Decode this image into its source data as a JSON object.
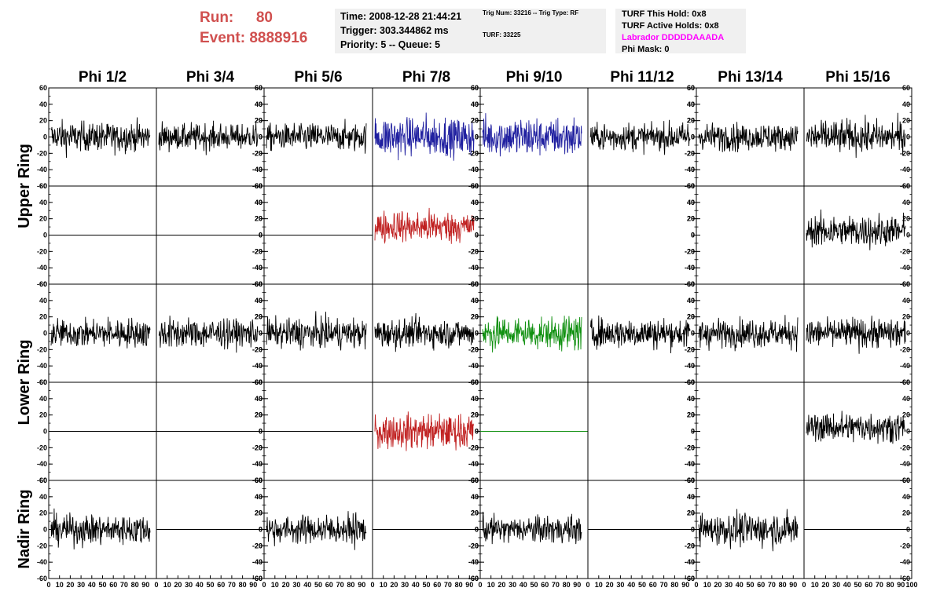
{
  "header": {
    "run_label": "Run:",
    "run_value": "80",
    "event_label": "Event:",
    "event_value": "8888916",
    "time_line": "Time: 2008-12-28 21:44:21",
    "trigger_line": "Trigger: 303.344862 ms",
    "priority_line": "Priority: 5 -- Queue: 5",
    "trig_line": "Trig Num: 33216 -- Trig Type: RF",
    "turf_line": "TURF: 33225",
    "turf_hold_line": "TURF This Hold: 0x8",
    "turf_active_line": "TURF Active Holds: 0x8",
    "labrador_line": "Labrador DDDDDAAADA",
    "phi_mask_line": "Phi Mask: 0",
    "labrador_color": "#ff00ff",
    "run_color": "#d0504f"
  },
  "columns": [
    "Phi 1/2",
    "Phi 3/4",
    "Phi 5/6",
    "Phi 7/8",
    "Phi 9/10",
    "Phi 11/12",
    "Phi 13/14",
    "Phi 15/16"
  ],
  "rings": [
    "Upper Ring",
    "Lower Ring",
    "Nadir Ring"
  ],
  "chart_data": {
    "type": "line",
    "ylim": [
      -60,
      60
    ],
    "xlim": [
      0,
      100
    ],
    "y_ticks": [
      "60",
      "40",
      "20",
      "0",
      "-20",
      "-40",
      "-60"
    ],
    "x_tick_labels": [
      "0",
      "10",
      "20",
      "30",
      "40",
      "50",
      "60",
      "70",
      "80",
      "90",
      "100"
    ],
    "colors": {
      "black": "#000000",
      "blue": "#2020a0",
      "red": "#c02020",
      "green": "#109010"
    },
    "panels": [
      [
        {
          "kind": "noise",
          "color": "black",
          "amp": 22
        },
        {
          "kind": "noise",
          "color": "black",
          "amp": 20
        },
        {
          "kind": "noise",
          "color": "black",
          "amp": 20
        },
        {
          "kind": "noise",
          "color": "blue",
          "amp": 30
        },
        {
          "kind": "noise",
          "color": "blue",
          "amp": 30
        },
        {
          "kind": "noise",
          "color": "black",
          "amp": 20
        },
        {
          "kind": "noise",
          "color": "black",
          "amp": 20
        },
        {
          "kind": "noise",
          "color": "black",
          "amp": 24
        }
      ],
      [
        {
          "kind": "flat",
          "color": "black"
        },
        {
          "kind": "flat",
          "color": "black"
        },
        {
          "kind": "flat",
          "color": "black"
        },
        {
          "kind": "noise",
          "color": "red",
          "amp": 24,
          "offset": 10
        },
        {
          "kind": "none"
        },
        {
          "kind": "none"
        },
        {
          "kind": "none"
        },
        {
          "kind": "noise",
          "color": "black",
          "amp": 24,
          "offset": 5
        }
      ],
      [
        {
          "kind": "noise",
          "color": "black",
          "amp": 22
        },
        {
          "kind": "noise",
          "color": "black",
          "amp": 22
        },
        {
          "kind": "noise",
          "color": "black",
          "amp": 22
        },
        {
          "kind": "noise",
          "color": "black",
          "amp": 22
        },
        {
          "kind": "noise",
          "color": "green",
          "amp": 26
        },
        {
          "kind": "noise",
          "color": "black",
          "amp": 22
        },
        {
          "kind": "noise",
          "color": "black",
          "amp": 22
        },
        {
          "kind": "noise",
          "color": "black",
          "amp": 22
        }
      ],
      [
        {
          "kind": "flat",
          "color": "black"
        },
        {
          "kind": "flat",
          "color": "black"
        },
        {
          "kind": "flat",
          "color": "black"
        },
        {
          "kind": "noise",
          "color": "red",
          "amp": 26
        },
        {
          "kind": "flat",
          "color": "green"
        },
        {
          "kind": "none"
        },
        {
          "kind": "none"
        },
        {
          "kind": "noise",
          "color": "black",
          "amp": 22,
          "offset": 5
        }
      ],
      [
        {
          "kind": "noise",
          "color": "black",
          "amp": 22
        },
        {
          "kind": "flat",
          "color": "black"
        },
        {
          "kind": "noise",
          "color": "black",
          "amp": 22
        },
        {
          "kind": "flat",
          "color": "black"
        },
        {
          "kind": "noise",
          "color": "black",
          "amp": 20
        },
        {
          "kind": "flat",
          "color": "black"
        },
        {
          "kind": "noise",
          "color": "black",
          "amp": 24
        },
        {
          "kind": "flat",
          "color": "black"
        }
      ]
    ]
  }
}
